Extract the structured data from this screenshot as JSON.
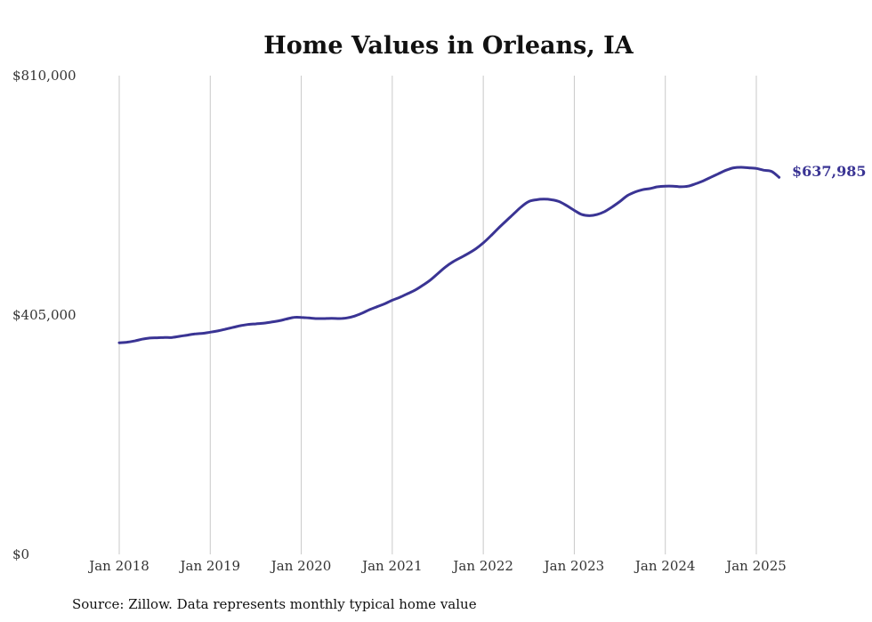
{
  "chart_data": {
    "type": "line",
    "title": "Home Values in Orleans, IA",
    "ylim": [
      0,
      810000
    ],
    "y_ticks": [
      {
        "value": 0,
        "label": "$0"
      },
      {
        "value": 405000,
        "label": "$405,000"
      },
      {
        "value": 810000,
        "label": "$810,000"
      }
    ],
    "x_ticks": [
      {
        "value": 2018,
        "label": "Jan 2018"
      },
      {
        "value": 2019,
        "label": "Jan 2019"
      },
      {
        "value": 2020,
        "label": "Jan 2020"
      },
      {
        "value": 2021,
        "label": "Jan 2021"
      },
      {
        "value": 2022,
        "label": "Jan 2022"
      },
      {
        "value": 2023,
        "label": "Jan 2023"
      },
      {
        "value": 2024,
        "label": "Jan 2024"
      },
      {
        "value": 2025,
        "label": "Jan 2025"
      }
    ],
    "xlim": [
      2018,
      2025.25
    ],
    "grid": "vertical",
    "line_color": "#3a3494",
    "end_label": "$637,985",
    "series": [
      {
        "x": [
          2018.0,
          2018.083,
          2018.167,
          2018.25,
          2018.333,
          2018.417,
          2018.5,
          2018.583,
          2018.667,
          2018.75,
          2018.833,
          2018.917,
          2019.0,
          2019.083,
          2019.167,
          2019.25,
          2019.333,
          2019.417,
          2019.5,
          2019.583,
          2019.667,
          2019.75,
          2019.833,
          2019.917,
          2020.0,
          2020.083,
          2020.167,
          2020.25,
          2020.333,
          2020.417,
          2020.5,
          2020.583,
          2020.667,
          2020.75,
          2020.833,
          2020.917,
          2021.0,
          2021.083,
          2021.167,
          2021.25,
          2021.333,
          2021.417,
          2021.5,
          2021.583,
          2021.667,
          2021.75,
          2021.833,
          2021.917,
          2022.0,
          2022.083,
          2022.167,
          2022.25,
          2022.333,
          2022.417,
          2022.5,
          2022.583,
          2022.667,
          2022.75,
          2022.833,
          2022.917,
          2023.0,
          2023.083,
          2023.167,
          2023.25,
          2023.333,
          2023.417,
          2023.5,
          2023.583,
          2023.667,
          2023.75,
          2023.833,
          2023.917,
          2024.0,
          2024.083,
          2024.167,
          2024.25,
          2024.333,
          2024.417,
          2024.5,
          2024.583,
          2024.667,
          2024.75,
          2024.833,
          2024.917,
          2025.0,
          2025.083,
          2025.167,
          2025.25
        ],
        "y": [
          358000,
          359000,
          361000,
          364000,
          366000,
          366500,
          367000,
          367000,
          369000,
          371000,
          373000,
          374000,
          376000,
          378000,
          381000,
          384000,
          387000,
          389000,
          390000,
          391000,
          393000,
          395000,
          398000,
          401000,
          401000,
          400000,
          399000,
          399000,
          399500,
          399000,
          400000,
          403000,
          408000,
          414000,
          419000,
          424000,
          430000,
          435000,
          441000,
          447000,
          455000,
          464000,
          475000,
          486000,
          495000,
          502000,
          509000,
          517000,
          527000,
          539000,
          552000,
          564000,
          576000,
          588000,
          597000,
          600000,
          601000,
          600000,
          597000,
          590000,
          582000,
          575000,
          573000,
          575000,
          580000,
          588000,
          597000,
          607000,
          613000,
          617000,
          619000,
          622000,
          623000,
          623000,
          622000,
          623000,
          627000,
          632000,
          638000,
          644000,
          650000,
          654000,
          655000,
          654000,
          653000,
          650000,
          648000,
          637985
        ]
      }
    ]
  },
  "source_text": "Source: Zillow. Data represents monthly typical home value"
}
